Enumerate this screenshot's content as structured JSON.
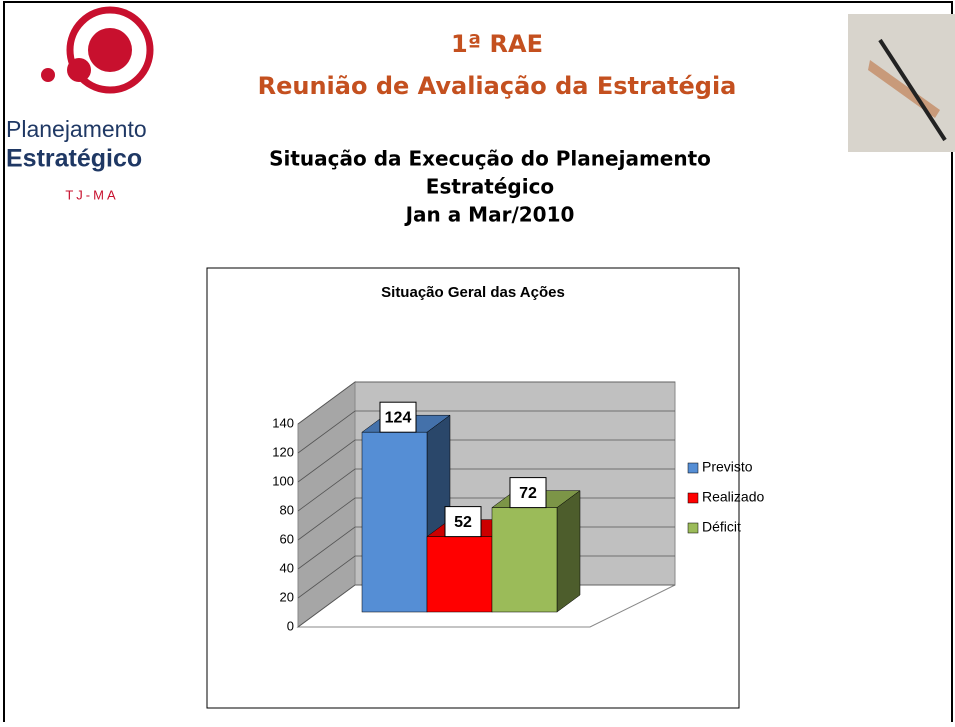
{
  "logo": {
    "line1": "Planejamento",
    "line2": "Estratégico",
    "line3": "TJ-MA"
  },
  "header": {
    "title1": "1ª RAE",
    "title2": "Reunião de Avaliação da Estratégia",
    "subtitle1": "Situação da Execução do Planejamento",
    "subtitle2": "Estratégico",
    "subtitle3": "Jan a Mar/2010"
  },
  "chart_data": {
    "type": "bar3d",
    "title": "Situação Geral das Ações",
    "categories": [
      null
    ],
    "series": [
      {
        "name": "Previsto",
        "color": "#558ed5",
        "values": [
          124
        ]
      },
      {
        "name": "Realizado",
        "color": "#ff0000",
        "values": [
          52
        ]
      },
      {
        "name": "Déficit",
        "color": "#9bbb59",
        "values": [
          72
        ]
      }
    ],
    "ylim": [
      0,
      140
    ],
    "yticks": [
      0,
      20,
      40,
      60,
      80,
      100,
      120,
      140
    ],
    "grid": true,
    "legend": "right",
    "data_labels": true
  }
}
